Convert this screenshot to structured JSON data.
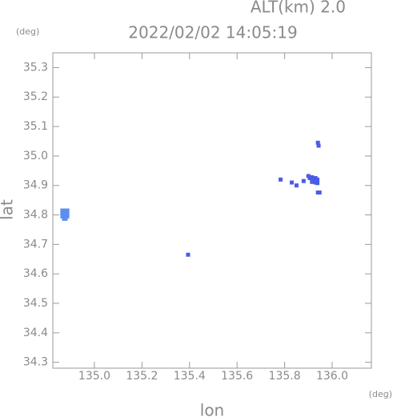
{
  "chart_data": {
    "type": "scatter",
    "title": "2022/02/02 14:05:19",
    "subtitle": "ALT(km) 2.0",
    "y_unit": "(deg)",
    "x_unit": "(deg)",
    "xlabel": "lon",
    "ylabel": "lat",
    "xlim": [
      134.825,
      136.165
    ],
    "ylim": [
      34.28,
      35.35
    ],
    "xticks": [
      {
        "value": 135.0,
        "label": "135.0"
      },
      {
        "value": 135.2,
        "label": "135.2"
      },
      {
        "value": 135.4,
        "label": "135.4"
      },
      {
        "value": 135.6,
        "label": "135.6"
      },
      {
        "value": 135.8,
        "label": "135.8"
      },
      {
        "value": 136.0,
        "label": "136.0"
      }
    ],
    "yticks": [
      {
        "value": 34.3,
        "label": "34.3"
      },
      {
        "value": 34.4,
        "label": "34.4"
      },
      {
        "value": 34.5,
        "label": "34.5"
      },
      {
        "value": 34.6,
        "label": "34.6"
      },
      {
        "value": 34.7,
        "label": "34.7"
      },
      {
        "value": 34.8,
        "label": "34.8"
      },
      {
        "value": 34.9,
        "label": "34.9"
      },
      {
        "value": 35.0,
        "label": "35.0"
      },
      {
        "value": 35.1,
        "label": "35.1"
      },
      {
        "value": 35.2,
        "label": "35.2"
      },
      {
        "value": 35.3,
        "label": "35.3"
      }
    ],
    "series": [
      {
        "color": "#5b8ff0",
        "x": [
          134.865,
          134.872,
          134.879,
          134.886,
          134.865,
          134.872,
          134.879,
          134.886,
          134.865,
          134.872,
          134.879,
          134.886,
          134.872,
          134.879
        ],
        "y": [
          34.815,
          34.815,
          34.815,
          34.815,
          34.805,
          34.805,
          34.805,
          34.805,
          34.795,
          34.795,
          34.795,
          34.795,
          34.787,
          34.787
        ]
      },
      {
        "color": "#4a5ce6",
        "x": [
          135.394,
          135.783,
          135.83,
          135.85,
          135.9,
          135.906,
          135.915,
          135.922,
          135.93,
          135.938,
          135.915,
          135.93,
          135.938,
          135.94,
          135.943,
          135.94,
          135.947,
          135.88
        ],
        "y": [
          34.665,
          34.92,
          34.91,
          34.9,
          34.932,
          34.925,
          34.928,
          34.92,
          34.925,
          34.92,
          34.912,
          34.91,
          34.908,
          35.045,
          35.035,
          34.876,
          34.876,
          34.915
        ]
      }
    ]
  }
}
